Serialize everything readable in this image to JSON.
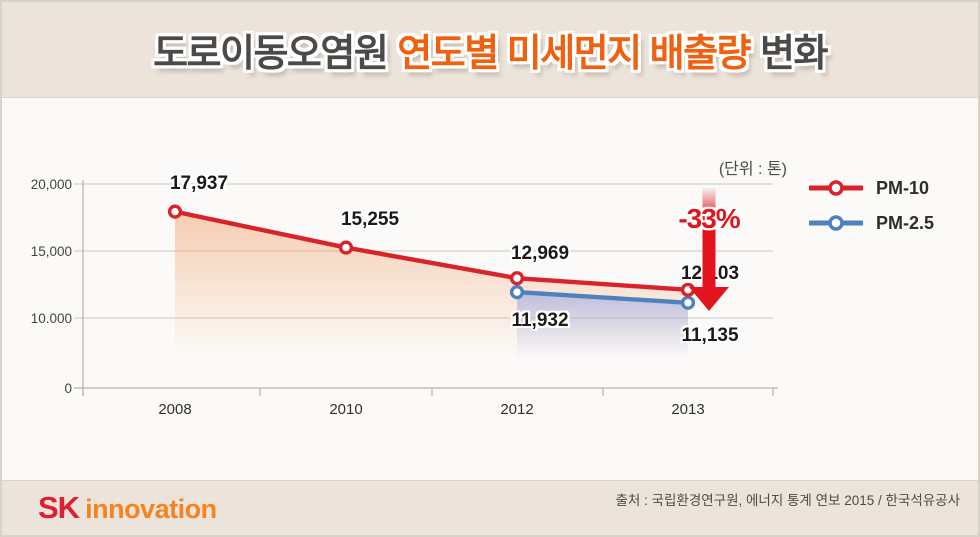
{
  "title": {
    "part1": "도로이동오염원",
    "part2": "연도별 미세먼지 배출량",
    "part3": "변화"
  },
  "unit_label": "(단위 : 톤)",
  "legend": [
    {
      "label": "PM-10",
      "color": "#d9232b"
    },
    {
      "label": "PM-2.5",
      "color": "#4e81bd"
    }
  ],
  "annotation": {
    "text": "-33%",
    "color": "#e2141d"
  },
  "footer": {
    "logo_sk": "SK",
    "logo_innovation": "innovation",
    "source": "출처 : 국립환경연구원, 에너지 통계 연보 2015 / 한국석유공사"
  },
  "chart_data": {
    "type": "line",
    "title": "도로이동오염원 연도별 미세먼지 배출량 변화",
    "unit": "톤",
    "categories": [
      "2008",
      "2010",
      "2012",
      "2013"
    ],
    "series": [
      {
        "name": "PM-10",
        "color": "#d9232b",
        "glow_color": "#f3a878",
        "values": [
          17937,
          15255,
          12969,
          12103
        ],
        "labels": [
          "17,937",
          "15,255",
          "12,969",
          "12,103"
        ]
      },
      {
        "name": "PM-2.5",
        "color": "#4e81bd",
        "glow_color": "#8f9fe0",
        "values": [
          null,
          null,
          11932,
          11135
        ],
        "labels": [
          "11,932",
          "11,135"
        ]
      }
    ],
    "yticks": [
      {
        "value": 20000,
        "label": "20,000"
      },
      {
        "value": 15000,
        "label": "15,000"
      },
      {
        "value": 10000,
        "label": "10.000"
      },
      {
        "value": 0,
        "label": "0"
      }
    ],
    "ylim": [
      0,
      20000
    ],
    "grid": true,
    "legend_position": "right",
    "annotation_value": "-33%"
  }
}
